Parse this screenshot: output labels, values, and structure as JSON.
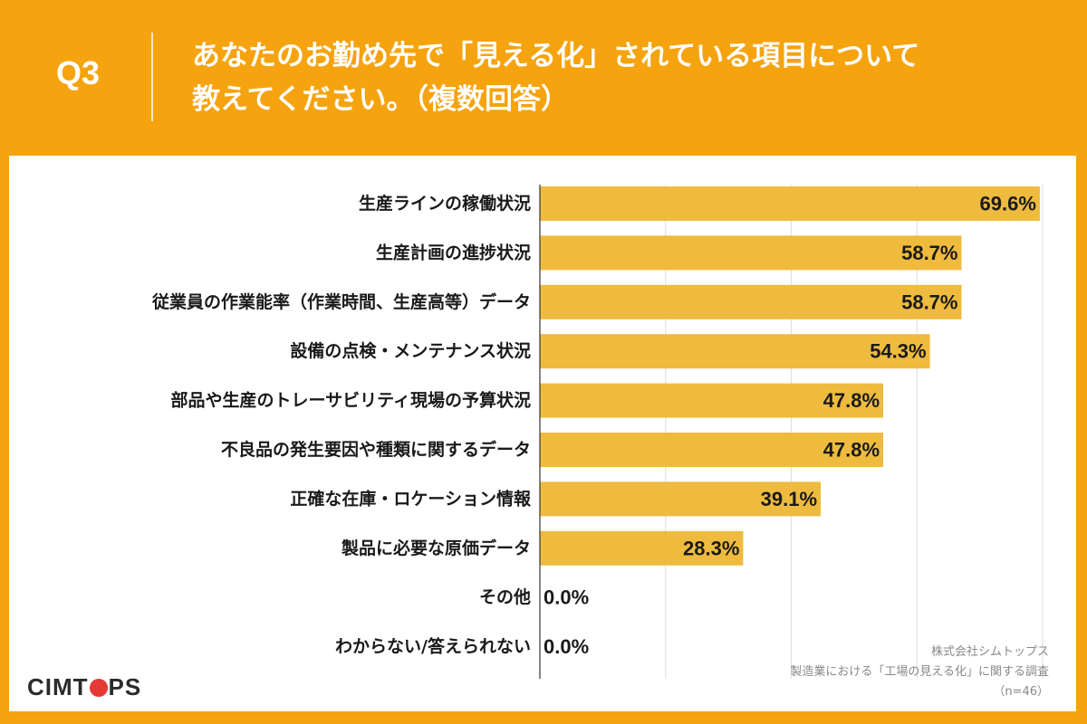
{
  "header": {
    "question_label": "Q3",
    "title_line1": "あなたのお勤め先で「見える化」されている項目について",
    "title_line2": "教えてください。（複数回答）"
  },
  "colors": {
    "background": "#F5A30F",
    "bar": "#EEBB3F",
    "panel": "#FFFFFF"
  },
  "chart_data": {
    "type": "bar",
    "orientation": "horizontal",
    "categories": [
      "生産ラインの稼働状況",
      "生産計画の進捗状況",
      "従業員の作業能率（作業時間、生産高等）データ",
      "設備の点検・メンテナンス状況",
      "部品や生産のトレーサビリティ現場の予算状況",
      "不良品の発生要因や種類に関するデータ",
      "正確な在庫・ロケーション情報",
      "製品に必要な原価データ",
      "その他",
      "わからない/答えられない"
    ],
    "values": [
      69.6,
      58.7,
      58.7,
      54.3,
      47.8,
      47.8,
      39.1,
      28.3,
      0.0,
      0.0
    ],
    "value_labels": [
      "69.6%",
      "58.7%",
      "58.7%",
      "54.3%",
      "47.8%",
      "47.8%",
      "39.1%",
      "28.3%",
      "0.0%",
      "0.0%"
    ],
    "xlim": [
      0,
      70
    ],
    "grid": true
  },
  "footer": {
    "logo_before": "CIMT",
    "logo_after": "PS",
    "source_company": "株式会社シムトップス",
    "source_survey": "製造業における「工場の見える化」に関する調査",
    "sample_size": "（n=46）"
  }
}
